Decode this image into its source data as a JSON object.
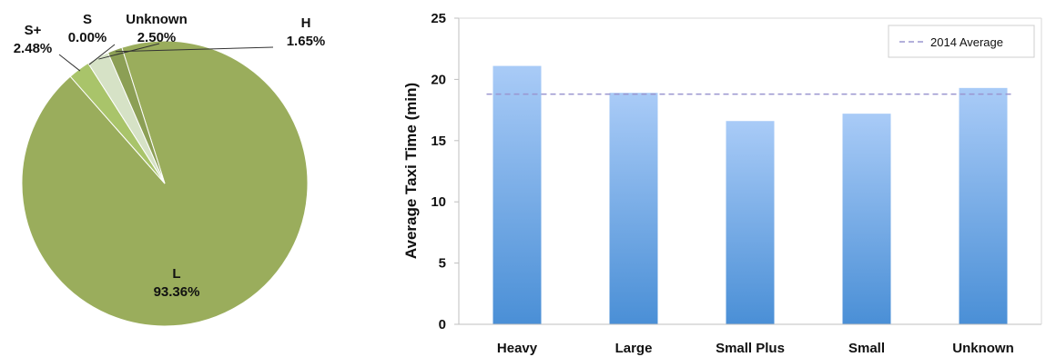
{
  "chart_data": [
    {
      "type": "pie",
      "title": "",
      "slices": [
        {
          "label": "L",
          "value": 93.36,
          "text": "93.36%",
          "color": "#9aad5c"
        },
        {
          "label": "S+",
          "value": 2.48,
          "text": "2.48%",
          "color": "#a9c46a"
        },
        {
          "label": "S",
          "value": 0.0,
          "text": "0.00%",
          "color": "#c4d89a"
        },
        {
          "label": "Unknown",
          "value": 2.5,
          "text": "2.50%",
          "color": "#d6e2c6"
        },
        {
          "label": "H",
          "value": 1.65,
          "text": "1.65%",
          "color": "#8c9f55"
        }
      ]
    },
    {
      "type": "bar",
      "title": "",
      "xlabel": "",
      "ylabel": "Average Taxi Time (min)",
      "ylim": [
        0,
        25
      ],
      "yticks": [
        0,
        5,
        10,
        15,
        20,
        25
      ],
      "categories": [
        "Heavy",
        "Large",
        "Small Plus",
        "Small",
        "Unknown"
      ],
      "values": [
        21.1,
        18.9,
        16.6,
        17.2,
        19.3
      ],
      "reference_line": {
        "name": "2014 Average",
        "value": 18.8,
        "style": "dashed",
        "color": "#9a95cf"
      },
      "bar_color_top": "#a9cbf7",
      "bar_color_bottom": "#4a8fd6",
      "legend_position": "top-right",
      "grid": false
    }
  ]
}
